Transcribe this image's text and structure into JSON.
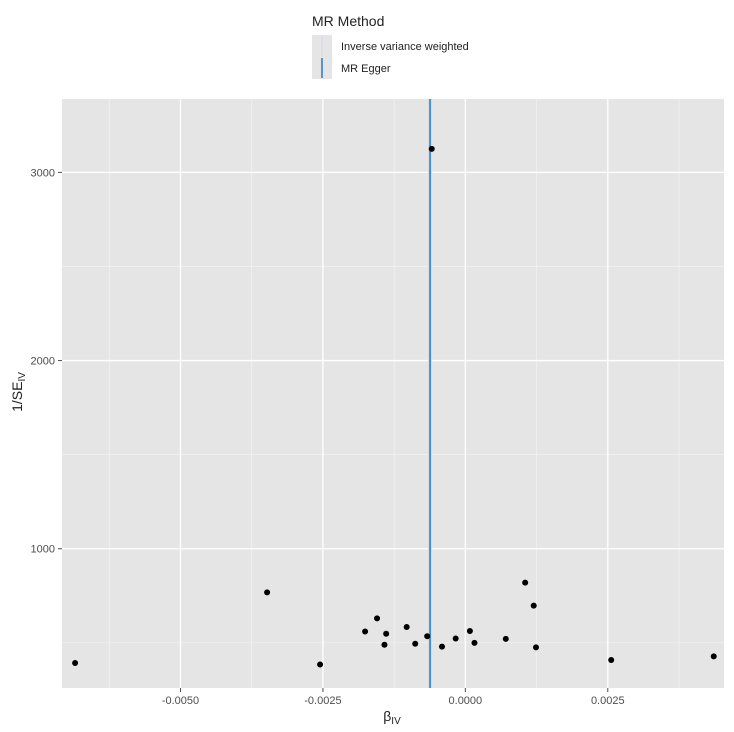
{
  "chart_data": {
    "type": "scatter",
    "title": "",
    "xlabel": "β",
    "xlabel_subscript": "IV",
    "ylabel": "1/SE",
    "ylabel_subscript": "IV",
    "xlim": [
      -0.00708,
      0.00454
    ],
    "ylim": [
      260,
      3390
    ],
    "x_ticks": [
      -0.005,
      -0.0025,
      0.0,
      0.0025
    ],
    "x_tick_labels": [
      "-0.0050",
      "-0.0025",
      "0.0000",
      "0.0025"
    ],
    "x_minor_ticks": [
      -0.00625,
      -0.00375,
      -0.00125,
      0.00125,
      0.00375
    ],
    "y_ticks": [
      1000,
      2000,
      3000
    ],
    "y_tick_labels": [
      "1000",
      "2000",
      "3000"
    ],
    "y_minor_ticks": [
      500,
      1500,
      2500
    ],
    "grid": true,
    "background": "#e5e5e5",
    "point_color": "#000000",
    "legend": {
      "title": "MR Method",
      "position": "top",
      "entries": [
        {
          "label": "Inverse variance weighted",
          "color": "#d3dde6"
        },
        {
          "label": "MR Egger",
          "color": "#3182bd"
        }
      ]
    },
    "vlines": [
      {
        "method": "Inverse variance weighted",
        "x": -0.00062,
        "color": "#d3dde6"
      },
      {
        "method": "MR Egger",
        "x": -0.00062,
        "color": "#3182bd"
      }
    ],
    "points": [
      {
        "x": -0.00685,
        "y": 393
      },
      {
        "x": -0.00348,
        "y": 768
      },
      {
        "x": -0.00255,
        "y": 385
      },
      {
        "x": -0.00176,
        "y": 560
      },
      {
        "x": -0.00155,
        "y": 630
      },
      {
        "x": -0.00142,
        "y": 490
      },
      {
        "x": -0.00139,
        "y": 548
      },
      {
        "x": -0.00103,
        "y": 584
      },
      {
        "x": -0.00088,
        "y": 495
      },
      {
        "x": -0.00067,
        "y": 535
      },
      {
        "x": -0.00059,
        "y": 3125
      },
      {
        "x": -0.00041,
        "y": 480
      },
      {
        "x": -0.00017,
        "y": 523
      },
      {
        "x": 8e-05,
        "y": 563
      },
      {
        "x": 0.00016,
        "y": 500
      },
      {
        "x": 0.00071,
        "y": 521
      },
      {
        "x": 0.00105,
        "y": 820
      },
      {
        "x": 0.0012,
        "y": 698
      },
      {
        "x": 0.00124,
        "y": 476
      },
      {
        "x": 0.00256,
        "y": 409
      },
      {
        "x": 0.00436,
        "y": 428
      }
    ]
  }
}
